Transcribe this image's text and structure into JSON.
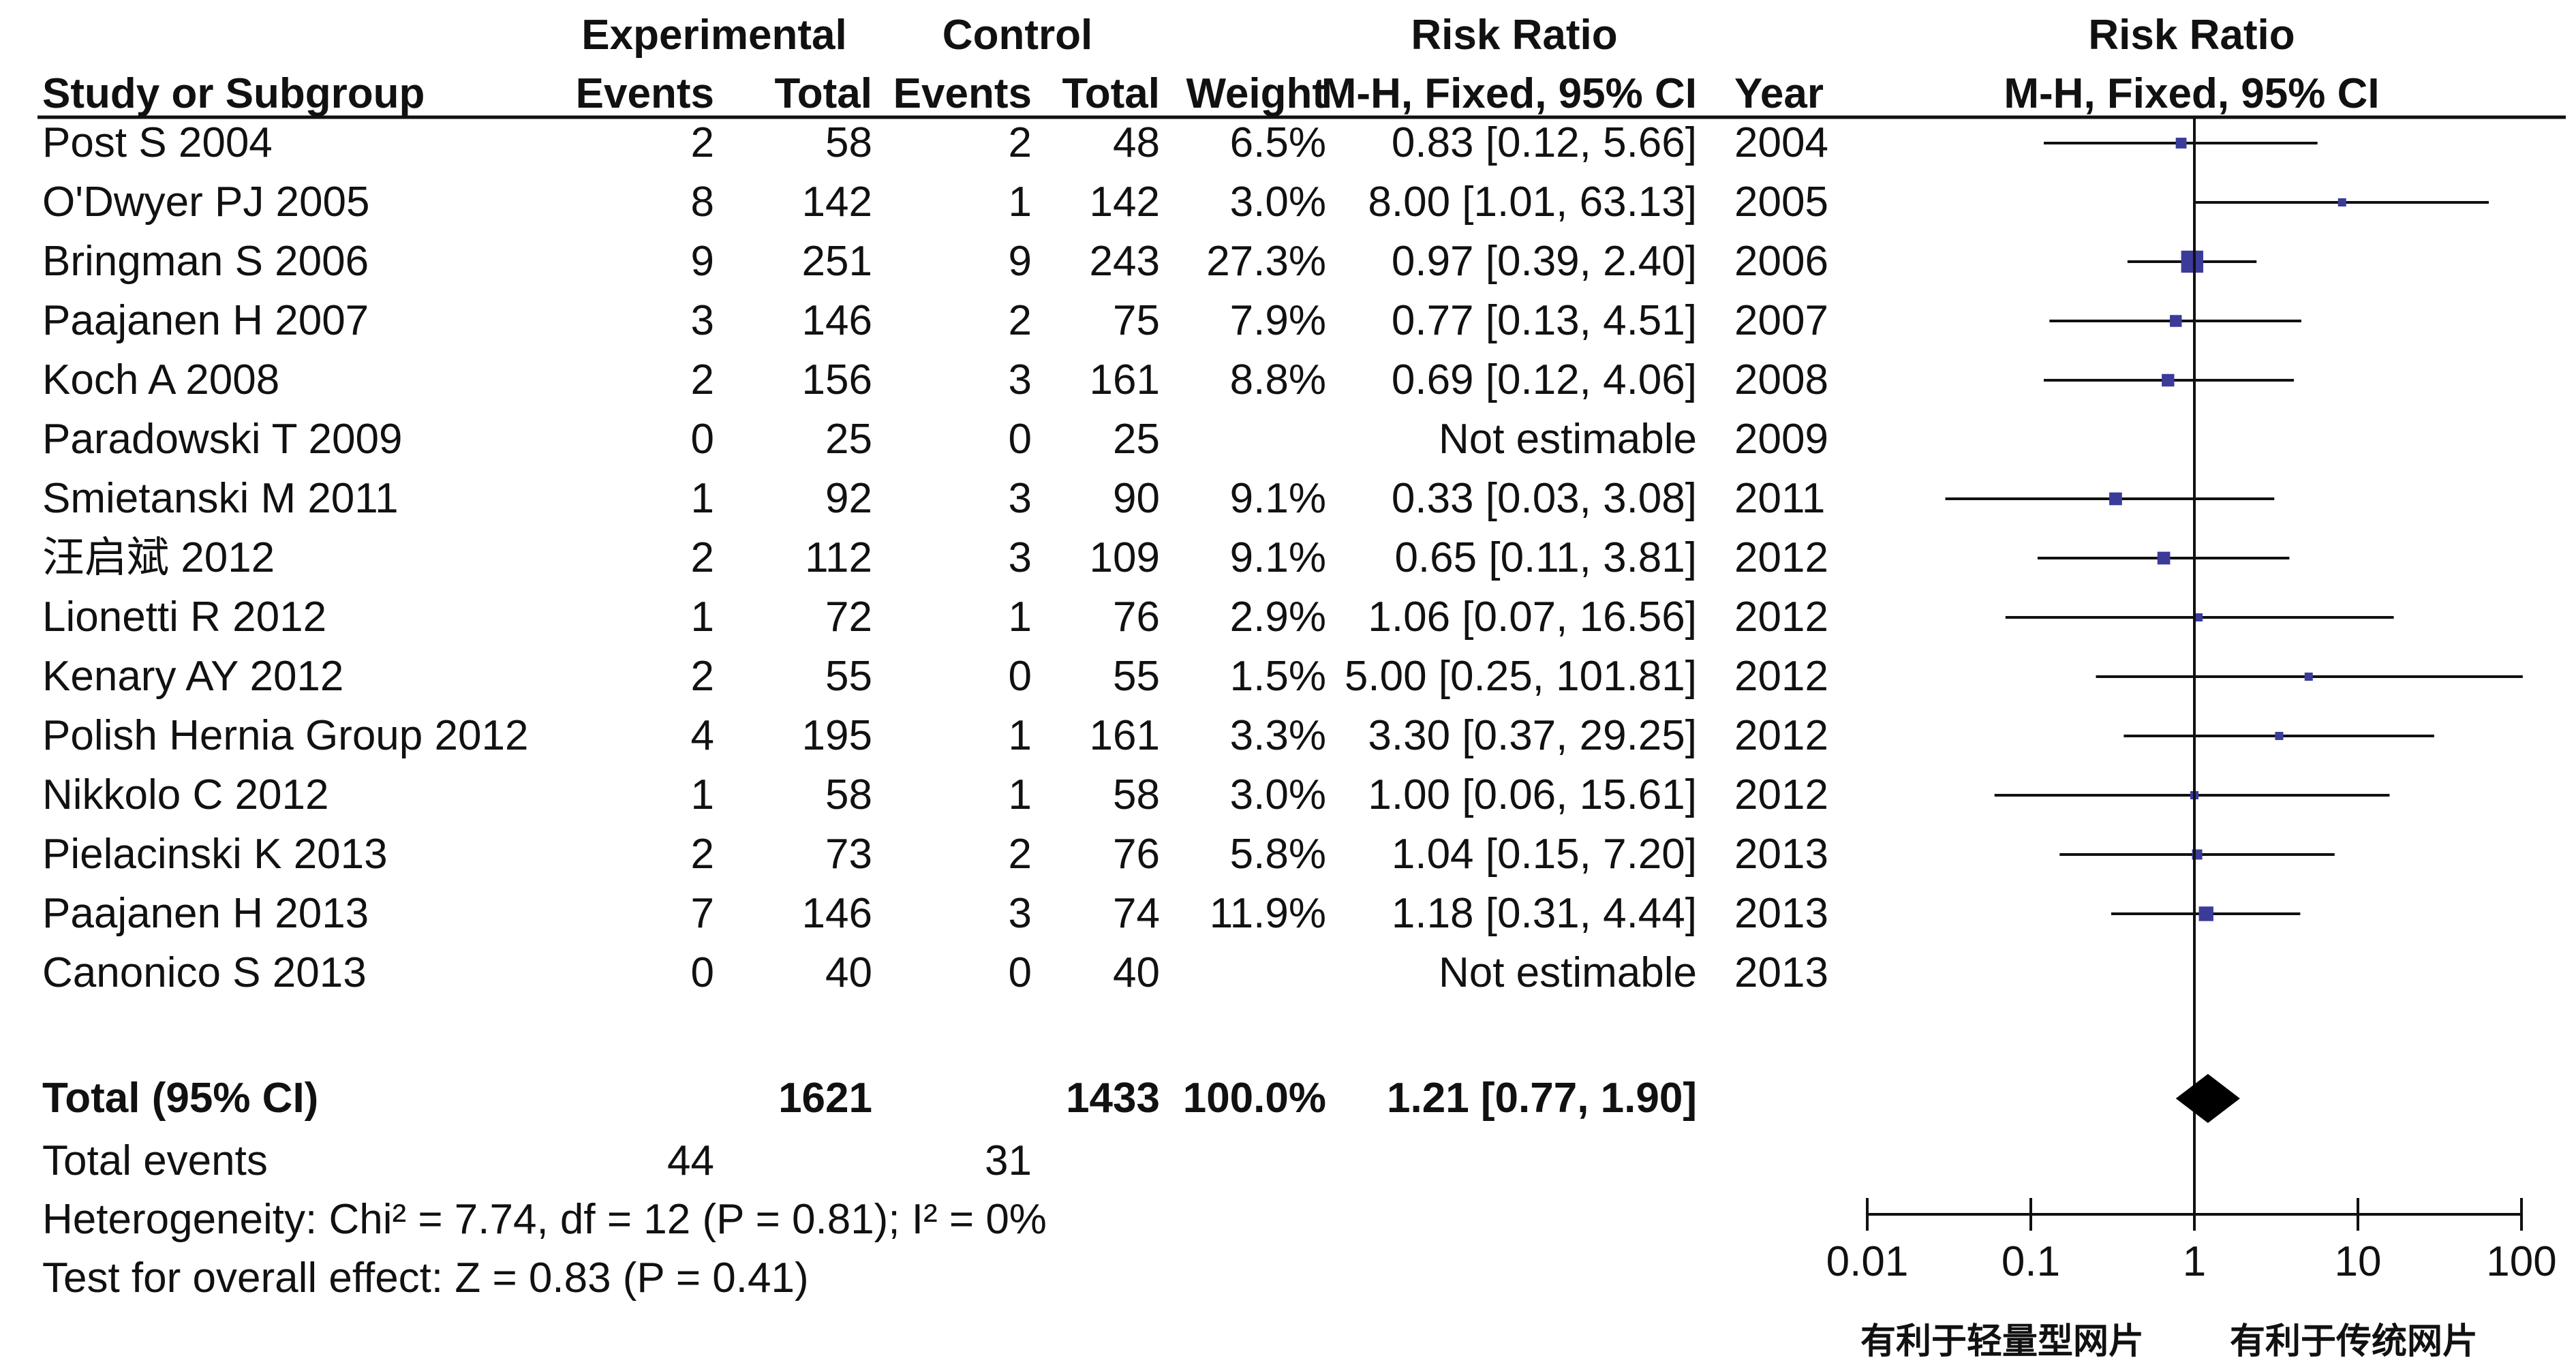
{
  "chart_data": {
    "type": "forest",
    "header": {
      "study_col": "Study or Subgroup",
      "exp_group": "Experimental",
      "ctrl_group": "Control",
      "events": "Events",
      "total": "Total",
      "weight": "Weight",
      "rr_title": "Risk Ratio",
      "rr_method": "M-H, Fixed, 95% CI",
      "year": "Year",
      "plot_title": "Risk Ratio",
      "plot_method": "M-H, Fixed, 95% CI"
    },
    "studies": [
      {
        "study": "Post S 2004",
        "exp_events": "2",
        "exp_total": "58",
        "ctrl_events": "2",
        "ctrl_total": "48",
        "weight": "6.5%",
        "rr_ci": "0.83 [0.12, 5.66]",
        "year": "2004",
        "rr": 0.83,
        "lower": 0.12,
        "upper": 5.66,
        "w": 6.5
      },
      {
        "study": "O'Dwyer PJ 2005",
        "exp_events": "8",
        "exp_total": "142",
        "ctrl_events": "1",
        "ctrl_total": "142",
        "weight": "3.0%",
        "rr_ci": "8.00 [1.01, 63.13]",
        "year": "2005",
        "rr": 8.0,
        "lower": 1.01,
        "upper": 63.13,
        "w": 3.0
      },
      {
        "study": "Bringman S 2006",
        "exp_events": "9",
        "exp_total": "251",
        "ctrl_events": "9",
        "ctrl_total": "243",
        "weight": "27.3%",
        "rr_ci": "0.97 [0.39, 2.40]",
        "year": "2006",
        "rr": 0.97,
        "lower": 0.39,
        "upper": 2.4,
        "w": 27.3
      },
      {
        "study": "Paajanen H 2007",
        "exp_events": "3",
        "exp_total": "146",
        "ctrl_events": "2",
        "ctrl_total": "75",
        "weight": "7.9%",
        "rr_ci": "0.77 [0.13, 4.51]",
        "year": "2007",
        "rr": 0.77,
        "lower": 0.13,
        "upper": 4.51,
        "w": 7.9
      },
      {
        "study": "Koch A 2008",
        "exp_events": "2",
        "exp_total": "156",
        "ctrl_events": "3",
        "ctrl_total": "161",
        "weight": "8.8%",
        "rr_ci": "0.69 [0.12, 4.06]",
        "year": "2008",
        "rr": 0.69,
        "lower": 0.12,
        "upper": 4.06,
        "w": 8.8
      },
      {
        "study": "Paradowski T 2009",
        "exp_events": "0",
        "exp_total": "25",
        "ctrl_events": "0",
        "ctrl_total": "25",
        "weight": "",
        "rr_ci": "Not estimable",
        "year": "2009",
        "rr": null,
        "lower": null,
        "upper": null,
        "w": 0
      },
      {
        "study": "Smietanski M 2011",
        "exp_events": "1",
        "exp_total": "92",
        "ctrl_events": "3",
        "ctrl_total": "90",
        "weight": "9.1%",
        "rr_ci": "0.33 [0.03, 3.08]",
        "year": "2011",
        "rr": 0.33,
        "lower": 0.03,
        "upper": 3.08,
        "w": 9.1
      },
      {
        "study": "汪启斌 2012",
        "exp_events": "2",
        "exp_total": "112",
        "ctrl_events": "3",
        "ctrl_total": "109",
        "weight": "9.1%",
        "rr_ci": "0.65 [0.11, 3.81]",
        "year": "2012",
        "rr": 0.65,
        "lower": 0.11,
        "upper": 3.81,
        "w": 9.1
      },
      {
        "study": "Lionetti R 2012",
        "exp_events": "1",
        "exp_total": "72",
        "ctrl_events": "1",
        "ctrl_total": "76",
        "weight": "2.9%",
        "rr_ci": "1.06 [0.07, 16.56]",
        "year": "2012",
        "rr": 1.06,
        "lower": 0.07,
        "upper": 16.56,
        "w": 2.9
      },
      {
        "study": "Kenary AY 2012",
        "exp_events": "2",
        "exp_total": "55",
        "ctrl_events": "0",
        "ctrl_total": "55",
        "weight": "1.5%",
        "rr_ci": "5.00 [0.25, 101.81]",
        "year": "2012",
        "rr": 5.0,
        "lower": 0.25,
        "upper": 101.81,
        "w": 1.5
      },
      {
        "study": "Polish Hernia Group 2012",
        "exp_events": "4",
        "exp_total": "195",
        "ctrl_events": "1",
        "ctrl_total": "161",
        "weight": "3.3%",
        "rr_ci": "3.30 [0.37, 29.25]",
        "year": "2012",
        "rr": 3.3,
        "lower": 0.37,
        "upper": 29.25,
        "w": 3.3
      },
      {
        "study": "Nikkolo C 2012",
        "exp_events": "1",
        "exp_total": "58",
        "ctrl_events": "1",
        "ctrl_total": "58",
        "weight": "3.0%",
        "rr_ci": "1.00 [0.06, 15.61]",
        "year": "2012",
        "rr": 1.0,
        "lower": 0.06,
        "upper": 15.61,
        "w": 3.0
      },
      {
        "study": "Pielacinski K 2013",
        "exp_events": "2",
        "exp_total": "73",
        "ctrl_events": "2",
        "ctrl_total": "76",
        "weight": "5.8%",
        "rr_ci": "1.04 [0.15, 7.20]",
        "year": "2013",
        "rr": 1.04,
        "lower": 0.15,
        "upper": 7.2,
        "w": 5.8
      },
      {
        "study": "Paajanen H 2013",
        "exp_events": "7",
        "exp_total": "146",
        "ctrl_events": "3",
        "ctrl_total": "74",
        "weight": "11.9%",
        "rr_ci": "1.18 [0.31, 4.44]",
        "year": "2013",
        "rr": 1.18,
        "lower": 0.31,
        "upper": 4.44,
        "w": 11.9
      },
      {
        "study": "Canonico S 2013",
        "exp_events": "0",
        "exp_total": "40",
        "ctrl_events": "0",
        "ctrl_total": "40",
        "weight": "",
        "rr_ci": "Not estimable",
        "year": "2013",
        "rr": null,
        "lower": null,
        "upper": null,
        "w": 0
      }
    ],
    "total": {
      "label": "Total (95% CI)",
      "exp_total": "1621",
      "ctrl_total": "1433",
      "weight": "100.0%",
      "rr_ci": "1.21 [0.77, 1.90]",
      "rr": 1.21,
      "lower": 0.77,
      "upper": 1.9
    },
    "total_events": {
      "label": "Total events",
      "exp": "44",
      "ctrl": "31"
    },
    "heterogeneity": "Heterogeneity: Chi² = 7.74, df = 12 (P = 0.81); I² = 0%",
    "overall_effect": "Test for overall effect: Z = 0.83 (P = 0.41)",
    "axis": {
      "scale": "log",
      "ticks": [
        0.01,
        0.1,
        1,
        10,
        100
      ],
      "tick_labels": [
        "0.01",
        "0.1",
        "1",
        "10",
        "100"
      ],
      "xlim": [
        0.01,
        100
      ],
      "left_label": "有利于轻量型网片",
      "right_label": "有利于传统网片"
    },
    "colors": {
      "text": "#111111",
      "line": "#111111",
      "marker": "#3b3b9a",
      "diamond": "#000000"
    }
  }
}
